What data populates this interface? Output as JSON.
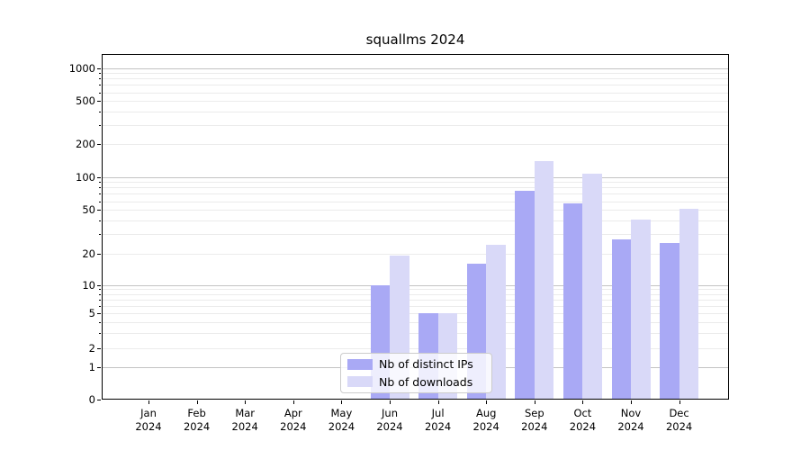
{
  "title": "squallms 2024",
  "chart_data": {
    "type": "bar",
    "title": "squallms 2024",
    "categories": [
      "Jan 2024",
      "Feb 2024",
      "Mar 2024",
      "Apr 2024",
      "May 2024",
      "Jun 2024",
      "Jul 2024",
      "Aug 2024",
      "Sep 2024",
      "Oct 2024",
      "Nov 2024",
      "Dec 2024"
    ],
    "series": [
      {
        "name": "Nb of distinct IPs",
        "color": "#a9a9f5",
        "values": [
          0,
          0,
          0,
          0,
          0,
          10,
          5,
          16,
          75,
          57,
          27,
          25
        ]
      },
      {
        "name": "Nb of downloads",
        "color": "#d9d9f8",
        "values": [
          0,
          0,
          0,
          0,
          0,
          19,
          5,
          24,
          140,
          107,
          41,
          51
        ]
      }
    ],
    "y_axis": {
      "scale": "symlog",
      "ticks": [
        1000,
        500,
        200,
        100,
        50,
        20,
        10,
        5,
        2,
        1,
        0
      ],
      "major_gridlines": [
        1,
        10,
        100,
        1000
      ],
      "range": [
        0,
        1350
      ]
    },
    "x_axis": {
      "label_year": "2024"
    },
    "grid": true,
    "legend": {
      "position": "lower center",
      "entries": [
        "Nb of distinct IPs",
        "Nb of downloads"
      ]
    }
  },
  "colors": {
    "major_grid": "#c3c3c3",
    "minor_grid": "#ebebeb",
    "spine": "#000000",
    "text": "#000000"
  }
}
